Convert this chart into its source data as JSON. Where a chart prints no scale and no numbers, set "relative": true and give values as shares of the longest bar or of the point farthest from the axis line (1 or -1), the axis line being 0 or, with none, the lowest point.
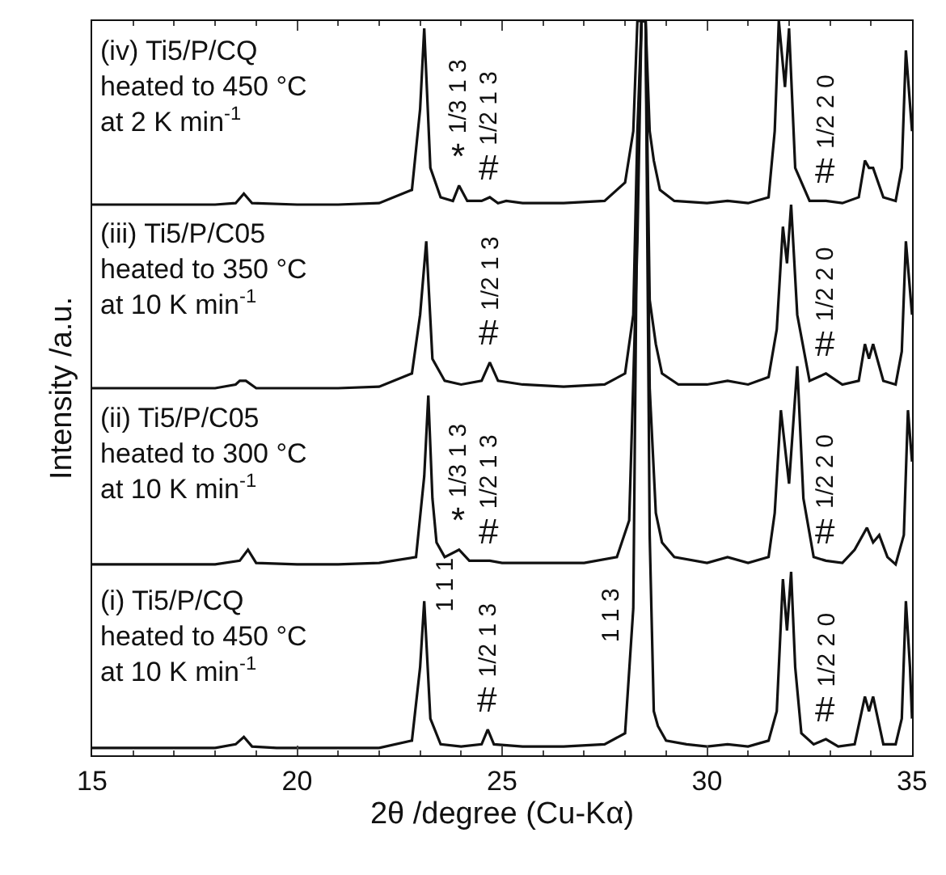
{
  "chart_data": {
    "type": "line",
    "relative": true,
    "xlabel": "2θ /degree (Cu-Kα)",
    "ylabel": "Intensity /a.u.",
    "xlim": [
      15,
      35
    ],
    "xticks": [
      15,
      20,
      25,
      30,
      35
    ],
    "marker": "none",
    "line_style": "solid",
    "series": [
      {
        "color": "#111111",
        "x": [
          15,
          16,
          17,
          18,
          18.5,
          18.7,
          18.9,
          19.5,
          20,
          21,
          22,
          22.8,
          23.0,
          23.1,
          23.25,
          23.5,
          24,
          24.5,
          24.65,
          24.8,
          25.5,
          26.5,
          27.5,
          28.0,
          28.2,
          28.3,
          28.4,
          28.5,
          28.6,
          28.7,
          28.8,
          29.0,
          29.5,
          30,
          30.5,
          31,
          31.5,
          31.7,
          31.85,
          31.95,
          32.05,
          32.15,
          32.3,
          32.6,
          32.9,
          33.2,
          33.6,
          33.85,
          33.95,
          34.05,
          34.3,
          34.6,
          34.75,
          34.85,
          34.95,
          35
        ],
        "values": [
          0.01,
          0.01,
          0.01,
          0.01,
          0.015,
          0.025,
          0.012,
          0.01,
          0.01,
          0.01,
          0.01,
          0.02,
          0.12,
          0.21,
          0.05,
          0.015,
          0.012,
          0.015,
          0.035,
          0.015,
          0.012,
          0.012,
          0.015,
          0.03,
          0.2,
          0.8,
          1,
          1,
          0.3,
          0.06,
          0.04,
          0.02,
          0.015,
          0.012,
          0.015,
          0.012,
          0.02,
          0.06,
          0.24,
          0.17,
          0.25,
          0.12,
          0.03,
          0.015,
          0.022,
          0.012,
          0.015,
          0.08,
          0.06,
          0.08,
          0.015,
          0.015,
          0.05,
          0.21,
          0.12,
          0.05
        ]
      },
      {
        "color": "#111111",
        "x": [
          15,
          16,
          17,
          18,
          18.6,
          18.8,
          19.0,
          20,
          21,
          22,
          22.9,
          23.1,
          23.2,
          23.3,
          23.4,
          23.6,
          23.95,
          24.2,
          24.7,
          25,
          26,
          27,
          27.8,
          28.1,
          28.3,
          28.4,
          28.5,
          28.6,
          28.75,
          28.9,
          29.2,
          30,
          30.5,
          31,
          31.5,
          31.65,
          31.8,
          32.0,
          32.2,
          32.35,
          32.6,
          32.9,
          33.3,
          33.6,
          33.9,
          34.05,
          34.2,
          34.4,
          34.6,
          34.8,
          34.9,
          35
        ],
        "values": [
          0.26,
          0.26,
          0.26,
          0.26,
          0.265,
          0.28,
          0.262,
          0.26,
          0.26,
          0.262,
          0.27,
          0.38,
          0.49,
          0.35,
          0.29,
          0.27,
          0.28,
          0.265,
          0.265,
          0.262,
          0.262,
          0.262,
          0.27,
          0.32,
          0.7,
          1,
          1,
          0.5,
          0.33,
          0.29,
          0.27,
          0.262,
          0.27,
          0.262,
          0.27,
          0.33,
          0.47,
          0.37,
          0.53,
          0.35,
          0.27,
          0.265,
          0.262,
          0.28,
          0.31,
          0.29,
          0.3,
          0.27,
          0.26,
          0.3,
          0.47,
          0.4
        ]
      },
      {
        "color": "#111111",
        "x": [
          15,
          16,
          17,
          18,
          18.5,
          18.6,
          18.75,
          19,
          20,
          21,
          22,
          22.8,
          23.0,
          23.15,
          23.3,
          23.6,
          24,
          24.5,
          24.7,
          24.9,
          25.5,
          26.5,
          27.5,
          28.0,
          28.2,
          28.3,
          28.4,
          28.5,
          28.6,
          28.75,
          28.9,
          29.3,
          30,
          30.5,
          31,
          31.5,
          31.7,
          31.85,
          31.95,
          32.05,
          32.2,
          32.5,
          32.9,
          33.3,
          33.7,
          33.85,
          33.95,
          34.05,
          34.3,
          34.6,
          34.75,
          34.85,
          35
        ],
        "values": [
          0.5,
          0.5,
          0.5,
          0.5,
          0.505,
          0.51,
          0.51,
          0.5,
          0.5,
          0.5,
          0.502,
          0.52,
          0.6,
          0.7,
          0.54,
          0.51,
          0.505,
          0.51,
          0.535,
          0.51,
          0.505,
          0.502,
          0.505,
          0.52,
          0.6,
          0.85,
          1,
          1,
          0.62,
          0.56,
          0.52,
          0.505,
          0.505,
          0.51,
          0.505,
          0.515,
          0.58,
          0.72,
          0.67,
          0.75,
          0.6,
          0.51,
          0.52,
          0.505,
          0.51,
          0.56,
          0.54,
          0.56,
          0.51,
          0.505,
          0.55,
          0.7,
          0.6
        ]
      },
      {
        "color": "#111111",
        "x": [
          15,
          16,
          17,
          18,
          18.5,
          18.7,
          18.9,
          20,
          21,
          22,
          22.8,
          23.0,
          23.1,
          23.25,
          23.5,
          23.8,
          23.95,
          24.15,
          24.5,
          24.7,
          24.9,
          25.1,
          25.5,
          26.5,
          27.5,
          28.0,
          28.2,
          28.3,
          28.4,
          28.5,
          28.6,
          28.7,
          28.85,
          29.2,
          30,
          30.5,
          31,
          31.5,
          31.65,
          31.75,
          31.9,
          32.0,
          32.15,
          32.5,
          32.9,
          33.3,
          33.7,
          33.85,
          33.95,
          34.05,
          34.3,
          34.6,
          34.75,
          34.85,
          35
        ],
        "values": [
          0.75,
          0.75,
          0.75,
          0.75,
          0.752,
          0.765,
          0.752,
          0.75,
          0.75,
          0.752,
          0.77,
          0.88,
          0.99,
          0.8,
          0.76,
          0.755,
          0.776,
          0.755,
          0.755,
          0.76,
          0.752,
          0.755,
          0.752,
          0.752,
          0.755,
          0.78,
          0.85,
          1,
          1,
          1,
          0.85,
          0.81,
          0.77,
          0.755,
          0.752,
          0.755,
          0.752,
          0.76,
          0.85,
          1.0,
          0.91,
          0.99,
          0.8,
          0.755,
          0.755,
          0.752,
          0.76,
          0.81,
          0.8,
          0.8,
          0.76,
          0.755,
          0.8,
          0.96,
          0.85
        ]
      }
    ],
    "annotations": [
      "(iv) Ti5/P/CQ\nheated to 450 °C\nat 2 K min$^{-1}$",
      "(iii) Ti5/P/C05\nheated to 350 °C\nat 10 K min$^{-1}$",
      "(ii) Ti5/P/C05\nheated to 300 °C\nat 10 K min$^{-1}$",
      "(i) Ti5/P/CQ\nheated to 450 °C\nat 10 K min$^{-1}$",
      "1 1 1",
      "1 1 3",
      {
        "text": "*",
        "x": 23.95,
        "y": 0.776
      },
      {
        "text": "1/3 1 3",
        "x": 23.95,
        "y": 0.776
      },
      {
        "text": "#",
        "x": 24.7,
        "y": 0.76
      },
      {
        "text": "1/2 1 3",
        "x": 24.7,
        "y": 0.76
      },
      {
        "text": "#",
        "x": 32.9,
        "y": 0.755
      },
      {
        "text": "1/2 2 0",
        "x": 32.9,
        "y": 0.755
      },
      {
        "text": "#",
        "x": 24.7,
        "y": 0.535
      },
      {
        "text": "1/2 1 3",
        "x": 24.7,
        "y": 0.535
      },
      {
        "text": "#",
        "x": 32.9,
        "y": 0.52
      },
      {
        "text": "1/2 2 0",
        "x": 32.9,
        "y": 0.52
      },
      {
        "text": "*",
        "x": 23.95,
        "y": 0.28
      },
      {
        "text": "1/3 1 3",
        "x": 23.95,
        "y": 0.28
      },
      {
        "text": "#",
        "x": 24.7,
        "y": 0.265
      },
      {
        "text": "1/2 1 3",
        "x": 24.7,
        "y": 0.265
      },
      {
        "text": "#",
        "x": 32.9,
        "y": 0.265
      },
      {
        "text": "1/2 2 0",
        "x": 32.9,
        "y": 0.265
      },
      {
        "text": "#",
        "x": 24.65,
        "y": 0.035
      },
      {
        "text": "1/2 1 3",
        "x": 24.65,
        "y": 0.035
      },
      {
        "text": "#",
        "x": 32.9,
        "y": 0.022
      },
      {
        "text": "1/2 2 0",
        "x": 32.9,
        "y": 0.022
      }
    ]
  }
}
